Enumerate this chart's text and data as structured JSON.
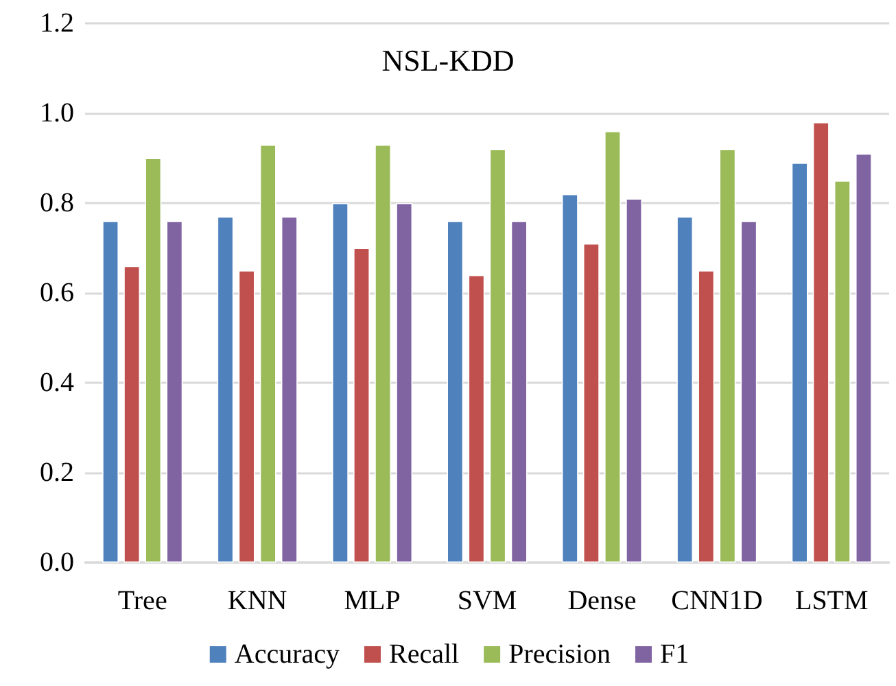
{
  "chart_data": {
    "type": "bar",
    "title": "NSL-KDD",
    "categories": [
      "Tree",
      "KNN",
      "MLP",
      "SVM",
      "Dense",
      "CNN1D",
      "LSTM"
    ],
    "series": [
      {
        "name": "Accuracy",
        "color": "#4f81bd",
        "values": [
          0.76,
          0.77,
          0.8,
          0.76,
          0.82,
          0.77,
          0.89
        ]
      },
      {
        "name": "Recall",
        "color": "#c0504d",
        "values": [
          0.66,
          0.65,
          0.7,
          0.64,
          0.71,
          0.65,
          0.98
        ]
      },
      {
        "name": "Precision",
        "color": "#9bbb59",
        "values": [
          0.9,
          0.93,
          0.93,
          0.92,
          0.96,
          0.92,
          0.85
        ]
      },
      {
        "name": "F1",
        "color": "#8064a2",
        "values": [
          0.76,
          0.77,
          0.8,
          0.76,
          0.81,
          0.76,
          0.91
        ]
      }
    ],
    "ylim": [
      0,
      1.2
    ],
    "yticks": [
      {
        "value": 0,
        "label": "0.0"
      },
      0.2,
      0.4,
      0.6,
      0.8,
      {
        "value": 1,
        "label": "1.0"
      },
      1.2
    ],
    "grid": "y",
    "legend": "bottom"
  }
}
